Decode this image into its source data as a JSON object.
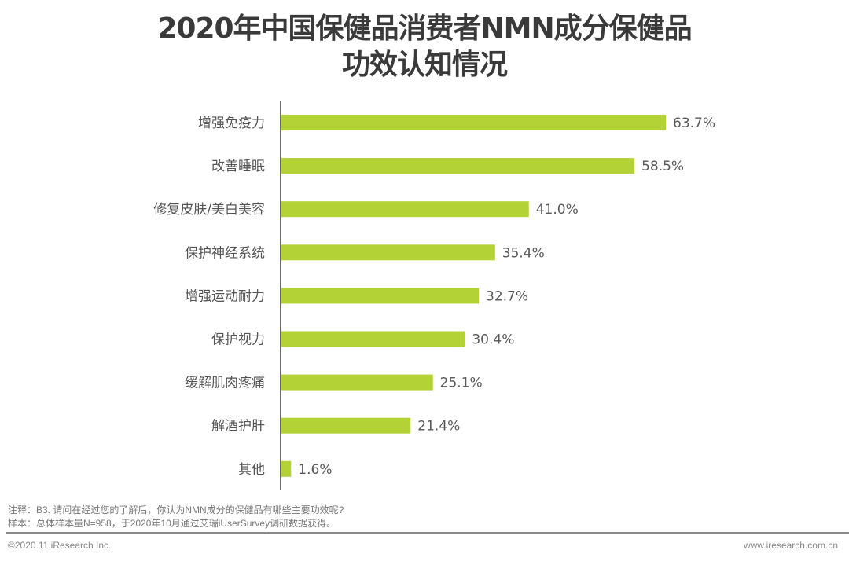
{
  "chart_data": {
    "type": "bar",
    "orientation": "horizontal",
    "title_line1": "2020年中国保健品消费者NMN成分保健品",
    "title_line2": "功效认知情况",
    "categories": [
      "增强免疫力",
      "改善睡眠",
      "修复皮肤/美白美容",
      "保护神经系统",
      "增强运动耐力",
      "保护视力",
      "缓解肌肉疼痛",
      "解酒护肝",
      "其他"
    ],
    "values": [
      63.7,
      58.5,
      41.0,
      35.4,
      32.7,
      30.4,
      25.1,
      21.4,
      1.6
    ],
    "value_labels": [
      "63.7%",
      "58.5%",
      "41.0%",
      "35.4%",
      "32.7%",
      "30.4%",
      "25.1%",
      "21.4%",
      "1.6%"
    ],
    "unit": "%",
    "xlim": [
      0,
      100
    ],
    "grid": false,
    "bar_color": "#b2d235"
  },
  "notes": {
    "note": "注释：B3. 请问在经过您的了解后，你认为NMN成分的保健品有哪些主要功效呢?",
    "sample": "样本：总体样本量N=958，于2020年10月通过艾瑞iUserSurvey调研数据获得。"
  },
  "footer": {
    "copyright": "©2020.11 iResearch Inc.",
    "website": "www.iresearch.com.cn"
  }
}
